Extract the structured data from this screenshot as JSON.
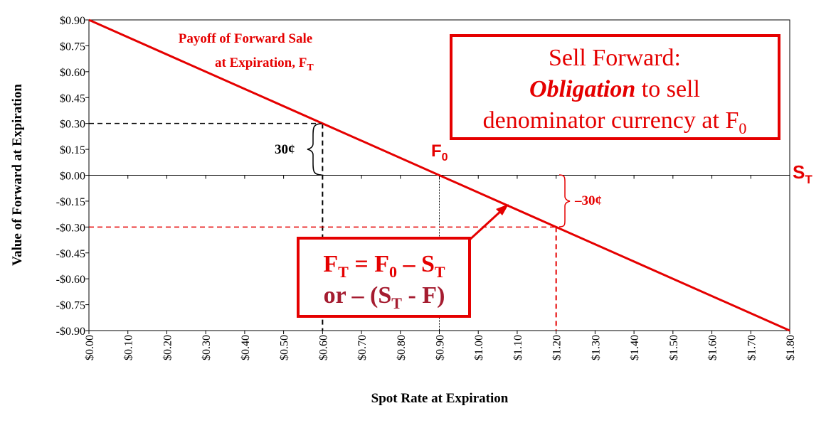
{
  "chart_data": {
    "type": "line",
    "title": "Payoff of Forward Sale at Expiration, F_T",
    "xlabel": "Spot Rate at Expiration",
    "ylabel": "Value of Forward at Expiration",
    "xlim": [
      0,
      1.8
    ],
    "ylim": [
      -0.9,
      0.9
    ],
    "x_ticks": [
      "$0.00",
      "$0.10",
      "$0.20",
      "$0.30",
      "$0.40",
      "$0.50",
      "$0.60",
      "$0.70",
      "$0.80",
      "$0.90",
      "$1.00",
      "$1.10",
      "$1.20",
      "$1.30",
      "$1.40",
      "$1.50",
      "$1.60",
      "$1.70",
      "$1.80"
    ],
    "y_ticks": [
      "$0.90",
      "$0.75",
      "$0.60",
      "$0.45",
      "$0.30",
      "$0.15",
      "$0.00",
      "-$0.15",
      "-$0.30",
      "-$0.45",
      "-$0.60",
      "-$0.75",
      "-$0.90"
    ],
    "series": [
      {
        "name": "Payoff of Forward Sale",
        "color": "#e50000",
        "x": [
          0,
          1.8
        ],
        "y": [
          0.9,
          -0.9
        ]
      }
    ],
    "forward_rate": 0.9,
    "annotations": {
      "payoff_label_line1": "Payoff of Forward Sale",
      "payoff_label_line2": "at Expiration, F",
      "payoff_label_sub": "T",
      "f0_label": "F",
      "f0_sub": "0",
      "st_label": "S",
      "st_sub": "T",
      "gain_label": "30¢",
      "gain_point": {
        "x": 0.6,
        "y": 0.3
      },
      "loss_label": "–30¢",
      "loss_point": {
        "x": 1.2,
        "y": -0.3
      }
    },
    "info_box": {
      "line1": "Sell Forward:",
      "line2_emph": "Obligation",
      "line2_rest": " to sell",
      "line3": "denominator currency at F",
      "line3_sub": "0"
    },
    "equation_box": {
      "l1_a": "F",
      "l1_a_sub": "T",
      "l1_b": " = F",
      "l1_b_sub": "0",
      "l1_c": " – S",
      "l1_c_sub": "T",
      "l2_a": "or – (S",
      "l2_a_sub": "T",
      "l2_b": " - F)"
    },
    "colors": {
      "line": "#e50000",
      "equation": "#a51c30",
      "guide_black": "#000000"
    }
  }
}
